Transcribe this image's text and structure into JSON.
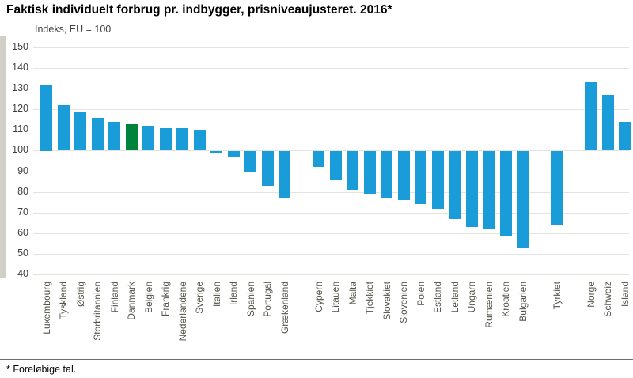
{
  "title": "Faktisk individuelt forbrug pr. indbygger, prisniveaujusteret. 2016*",
  "footnote": "* Foreløbige tal.",
  "colors": {
    "bar": "#1a9cd8",
    "highlight": "#00843d",
    "gridline": "#e4e3dc",
    "accent_strip": "#d1cfc7",
    "tick_text": "#3f3f3f",
    "label_text": "#55534b"
  },
  "chart_data": {
    "type": "bar",
    "title": "Faktisk individuelt forbrug pr. indbygger, prisniveaujusteret. 2016*",
    "ylabel": "Indeks, EU = 100",
    "xlabel": "",
    "ylim": [
      40,
      150
    ],
    "yticks": [
      150,
      140,
      130,
      120,
      110,
      100,
      90,
      80,
      70,
      60,
      50,
      40
    ],
    "baseline": 100,
    "grid": true,
    "legend": "none",
    "bars": [
      {
        "label": "Luxembourg",
        "value": 132
      },
      {
        "label": "Tyskland",
        "value": 122
      },
      {
        "label": "Østrig",
        "value": 119
      },
      {
        "label": "Storbritannien",
        "value": 116
      },
      {
        "label": "Finland",
        "value": 114
      },
      {
        "label": "Danmark",
        "value": 113,
        "highlight": true
      },
      {
        "label": "Belgien",
        "value": 112
      },
      {
        "label": "Frankrig",
        "value": 111
      },
      {
        "label": "Nederlandene",
        "value": 111
      },
      {
        "label": "Sverige",
        "value": 110
      },
      {
        "label": "Italien",
        "value": 99
      },
      {
        "label": "Irland",
        "value": 97
      },
      {
        "label": "Spanien",
        "value": 90
      },
      {
        "label": "Portugal",
        "value": 83
      },
      {
        "label": "Grækenland",
        "value": 77
      },
      {
        "label": "Cypern",
        "value": 92,
        "gap_before": true
      },
      {
        "label": "Litauen",
        "value": 86
      },
      {
        "label": "Malta",
        "value": 81
      },
      {
        "label": "Tjekkiet",
        "value": 79
      },
      {
        "label": "Slovakiet",
        "value": 77
      },
      {
        "label": "Slovenien",
        "value": 76
      },
      {
        "label": "Polen",
        "value": 74
      },
      {
        "label": "Estland",
        "value": 72
      },
      {
        "label": "Letland",
        "value": 67
      },
      {
        "label": "Ungarn",
        "value": 63
      },
      {
        "label": "Rumænien",
        "value": 62
      },
      {
        "label": "Kroatien",
        "value": 59
      },
      {
        "label": "Bulgarien",
        "value": 53
      },
      {
        "label": "Tyrkiet",
        "value": 64,
        "gap_before": true
      },
      {
        "label": "Norge",
        "value": 133,
        "gap_before": true
      },
      {
        "label": "Schweiz",
        "value": 127
      },
      {
        "label": "Island",
        "value": 114
      }
    ]
  }
}
